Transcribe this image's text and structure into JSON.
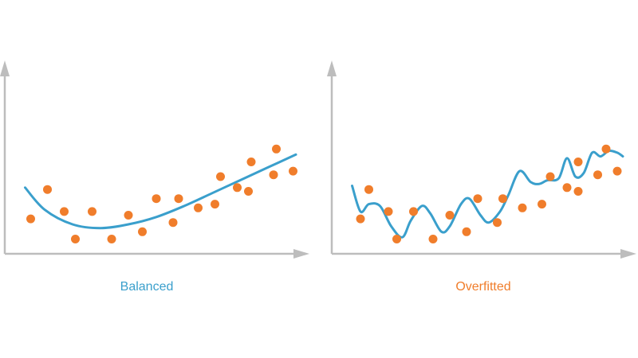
{
  "colors": {
    "axis": "#bdbdbd",
    "curve": "#3a9fcc",
    "points": "#f07d2b",
    "balanced_label": "#3a9fcc",
    "overfitted_label": "#f07d2b"
  },
  "panels": [
    {
      "key": "left",
      "caption": "Balanced"
    },
    {
      "key": "right",
      "caption": "Overfitted"
    }
  ],
  "chart_data": [
    {
      "type": "scatter",
      "title": "",
      "caption": "Balanced",
      "xlim": [
        0,
        100
      ],
      "ylim": [
        0,
        100
      ],
      "points": [
        {
          "x": 5,
          "y": 19
        },
        {
          "x": 11,
          "y": 35
        },
        {
          "x": 17,
          "y": 23
        },
        {
          "x": 21,
          "y": 8
        },
        {
          "x": 27,
          "y": 23
        },
        {
          "x": 34,
          "y": 8
        },
        {
          "x": 40,
          "y": 21
        },
        {
          "x": 45,
          "y": 12
        },
        {
          "x": 50,
          "y": 30
        },
        {
          "x": 56,
          "y": 17
        },
        {
          "x": 58,
          "y": 30
        },
        {
          "x": 65,
          "y": 25
        },
        {
          "x": 71,
          "y": 27
        },
        {
          "x": 73,
          "y": 42
        },
        {
          "x": 79,
          "y": 36
        },
        {
          "x": 83,
          "y": 34
        },
        {
          "x": 84,
          "y": 50
        },
        {
          "x": 92,
          "y": 43
        },
        {
          "x": 93,
          "y": 57
        },
        {
          "x": 99,
          "y": 45
        }
      ],
      "fit_curve": {
        "type": "line",
        "x": [
          3,
          10,
          20,
          30,
          40,
          50,
          60,
          70,
          80,
          90,
          100
        ],
        "y": [
          36,
          24,
          16,
          14,
          16,
          20,
          26,
          33,
          40,
          47,
          54
        ]
      }
    },
    {
      "type": "scatter",
      "title": "",
      "caption": "Overfitted",
      "xlim": [
        0,
        100
      ],
      "ylim": [
        0,
        100
      ],
      "points": [
        {
          "x": 6,
          "y": 19
        },
        {
          "x": 9,
          "y": 35
        },
        {
          "x": 16,
          "y": 23
        },
        {
          "x": 19,
          "y": 8
        },
        {
          "x": 25,
          "y": 23
        },
        {
          "x": 32,
          "y": 8
        },
        {
          "x": 38,
          "y": 21
        },
        {
          "x": 44,
          "y": 12
        },
        {
          "x": 48,
          "y": 30
        },
        {
          "x": 55,
          "y": 17
        },
        {
          "x": 57,
          "y": 30
        },
        {
          "x": 64,
          "y": 25
        },
        {
          "x": 71,
          "y": 27
        },
        {
          "x": 74,
          "y": 42
        },
        {
          "x": 80,
          "y": 36
        },
        {
          "x": 84,
          "y": 34
        },
        {
          "x": 84,
          "y": 50
        },
        {
          "x": 91,
          "y": 43
        },
        {
          "x": 94,
          "y": 57
        },
        {
          "x": 98,
          "y": 45
        }
      ],
      "fit_curve": {
        "type": "line",
        "x": [
          3,
          6,
          9,
          13,
          17,
          21,
          24,
          28,
          31,
          35,
          38,
          42,
          45,
          49,
          52,
          56,
          59,
          63,
          67,
          70,
          73,
          77,
          80,
          83,
          86,
          89,
          92,
          95,
          98,
          100
        ],
        "y": [
          37,
          23,
          27,
          26,
          15,
          9,
          18,
          26,
          22,
          12,
          15,
          27,
          30,
          21,
          17,
          23,
          32,
          45,
          39,
          38,
          40,
          41,
          52,
          42,
          44,
          55,
          53,
          56,
          55,
          53
        ]
      }
    }
  ]
}
